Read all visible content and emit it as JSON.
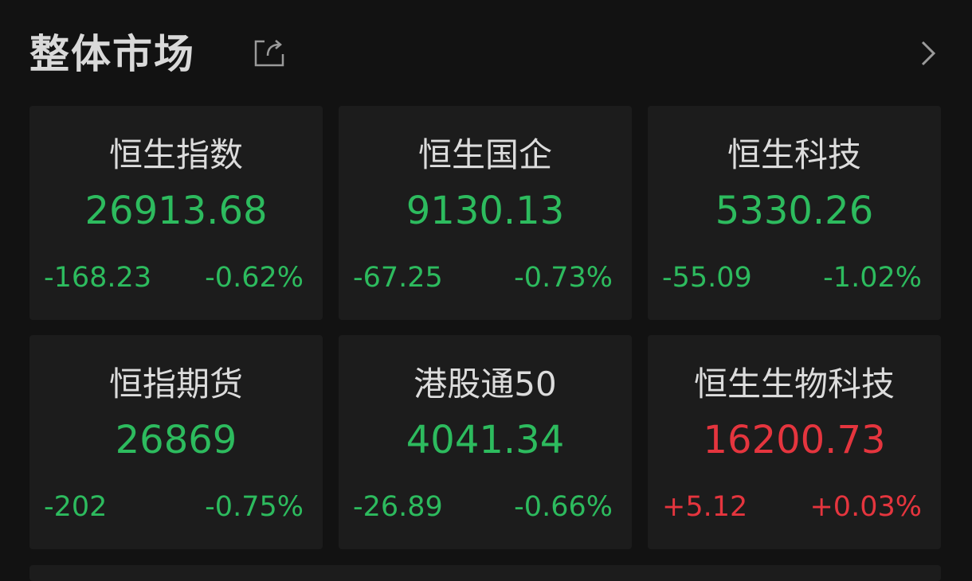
{
  "header": {
    "title": "整体市场",
    "share_icon": "share-icon",
    "more_icon": "chevron-right-icon"
  },
  "colors": {
    "up": "#e5353e",
    "down": "#2dbb5e",
    "background": "#121212",
    "card": "#1c1c1c"
  },
  "indices": [
    {
      "name": "恒生指数",
      "value": "26913.68",
      "change": "-168.23",
      "percent": "-0.62%",
      "trend": "down"
    },
    {
      "name": "恒生国企",
      "value": "9130.13",
      "change": "-67.25",
      "percent": "-0.73%",
      "trend": "down"
    },
    {
      "name": "恒生科技",
      "value": "5330.26",
      "change": "-55.09",
      "percent": "-1.02%",
      "trend": "down"
    },
    {
      "name": "恒指期货",
      "value": "26869",
      "change": "-202",
      "percent": "-0.75%",
      "trend": "down"
    },
    {
      "name": "港股通50",
      "value": "4041.34",
      "change": "-26.89",
      "percent": "-0.66%",
      "trend": "down"
    },
    {
      "name": "恒生生物科技",
      "value": "16200.73",
      "change": "+5.12",
      "percent": "+0.03%",
      "trend": "up"
    }
  ]
}
